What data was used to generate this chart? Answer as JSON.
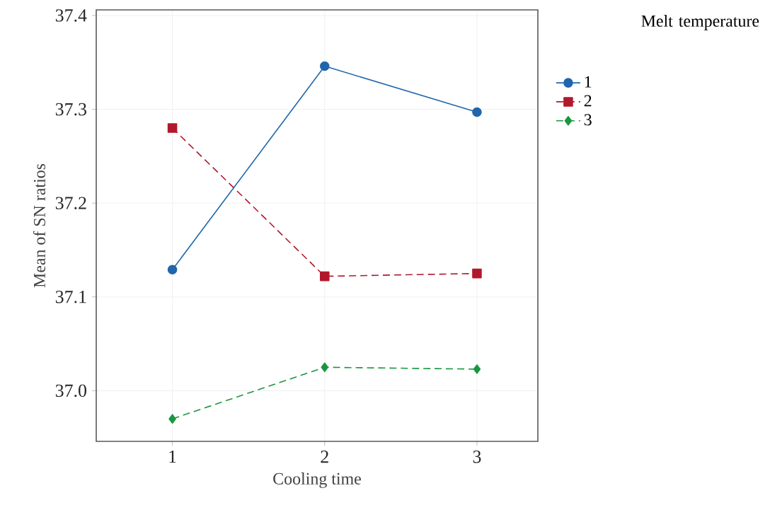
{
  "chart_data": {
    "type": "line",
    "xlabel": "Cooling time",
    "ylabel": "Mean of SN ratios",
    "legend_title": "Melt temperature",
    "categories": [
      "1",
      "2",
      "3"
    ],
    "series": [
      {
        "name": "1",
        "color": "#2166ac",
        "values": [
          37.129,
          37.346,
          37.297
        ],
        "marker": "circle",
        "line_style": "solid"
      },
      {
        "name": "2",
        "color": "#b2182b",
        "values": [
          37.28,
          37.122,
          37.125
        ],
        "marker": "square",
        "line_style": "dashed"
      },
      {
        "name": "3",
        "color": "#1a9641",
        "values": [
          36.97,
          37.025,
          37.023
        ],
        "marker": "diamond",
        "line_style": "dashed"
      }
    ],
    "ylim": [
      36.946,
      37.406
    ],
    "yticks": [
      {
        "value": 37.0,
        "label": "37.0"
      },
      {
        "value": 37.1,
        "label": "37.1"
      },
      {
        "value": 37.2,
        "label": "37.2"
      },
      {
        "value": 37.3,
        "label": "37.3"
      },
      {
        "value": 37.4,
        "label": "37.4"
      }
    ],
    "grid": true,
    "legend": "right"
  }
}
